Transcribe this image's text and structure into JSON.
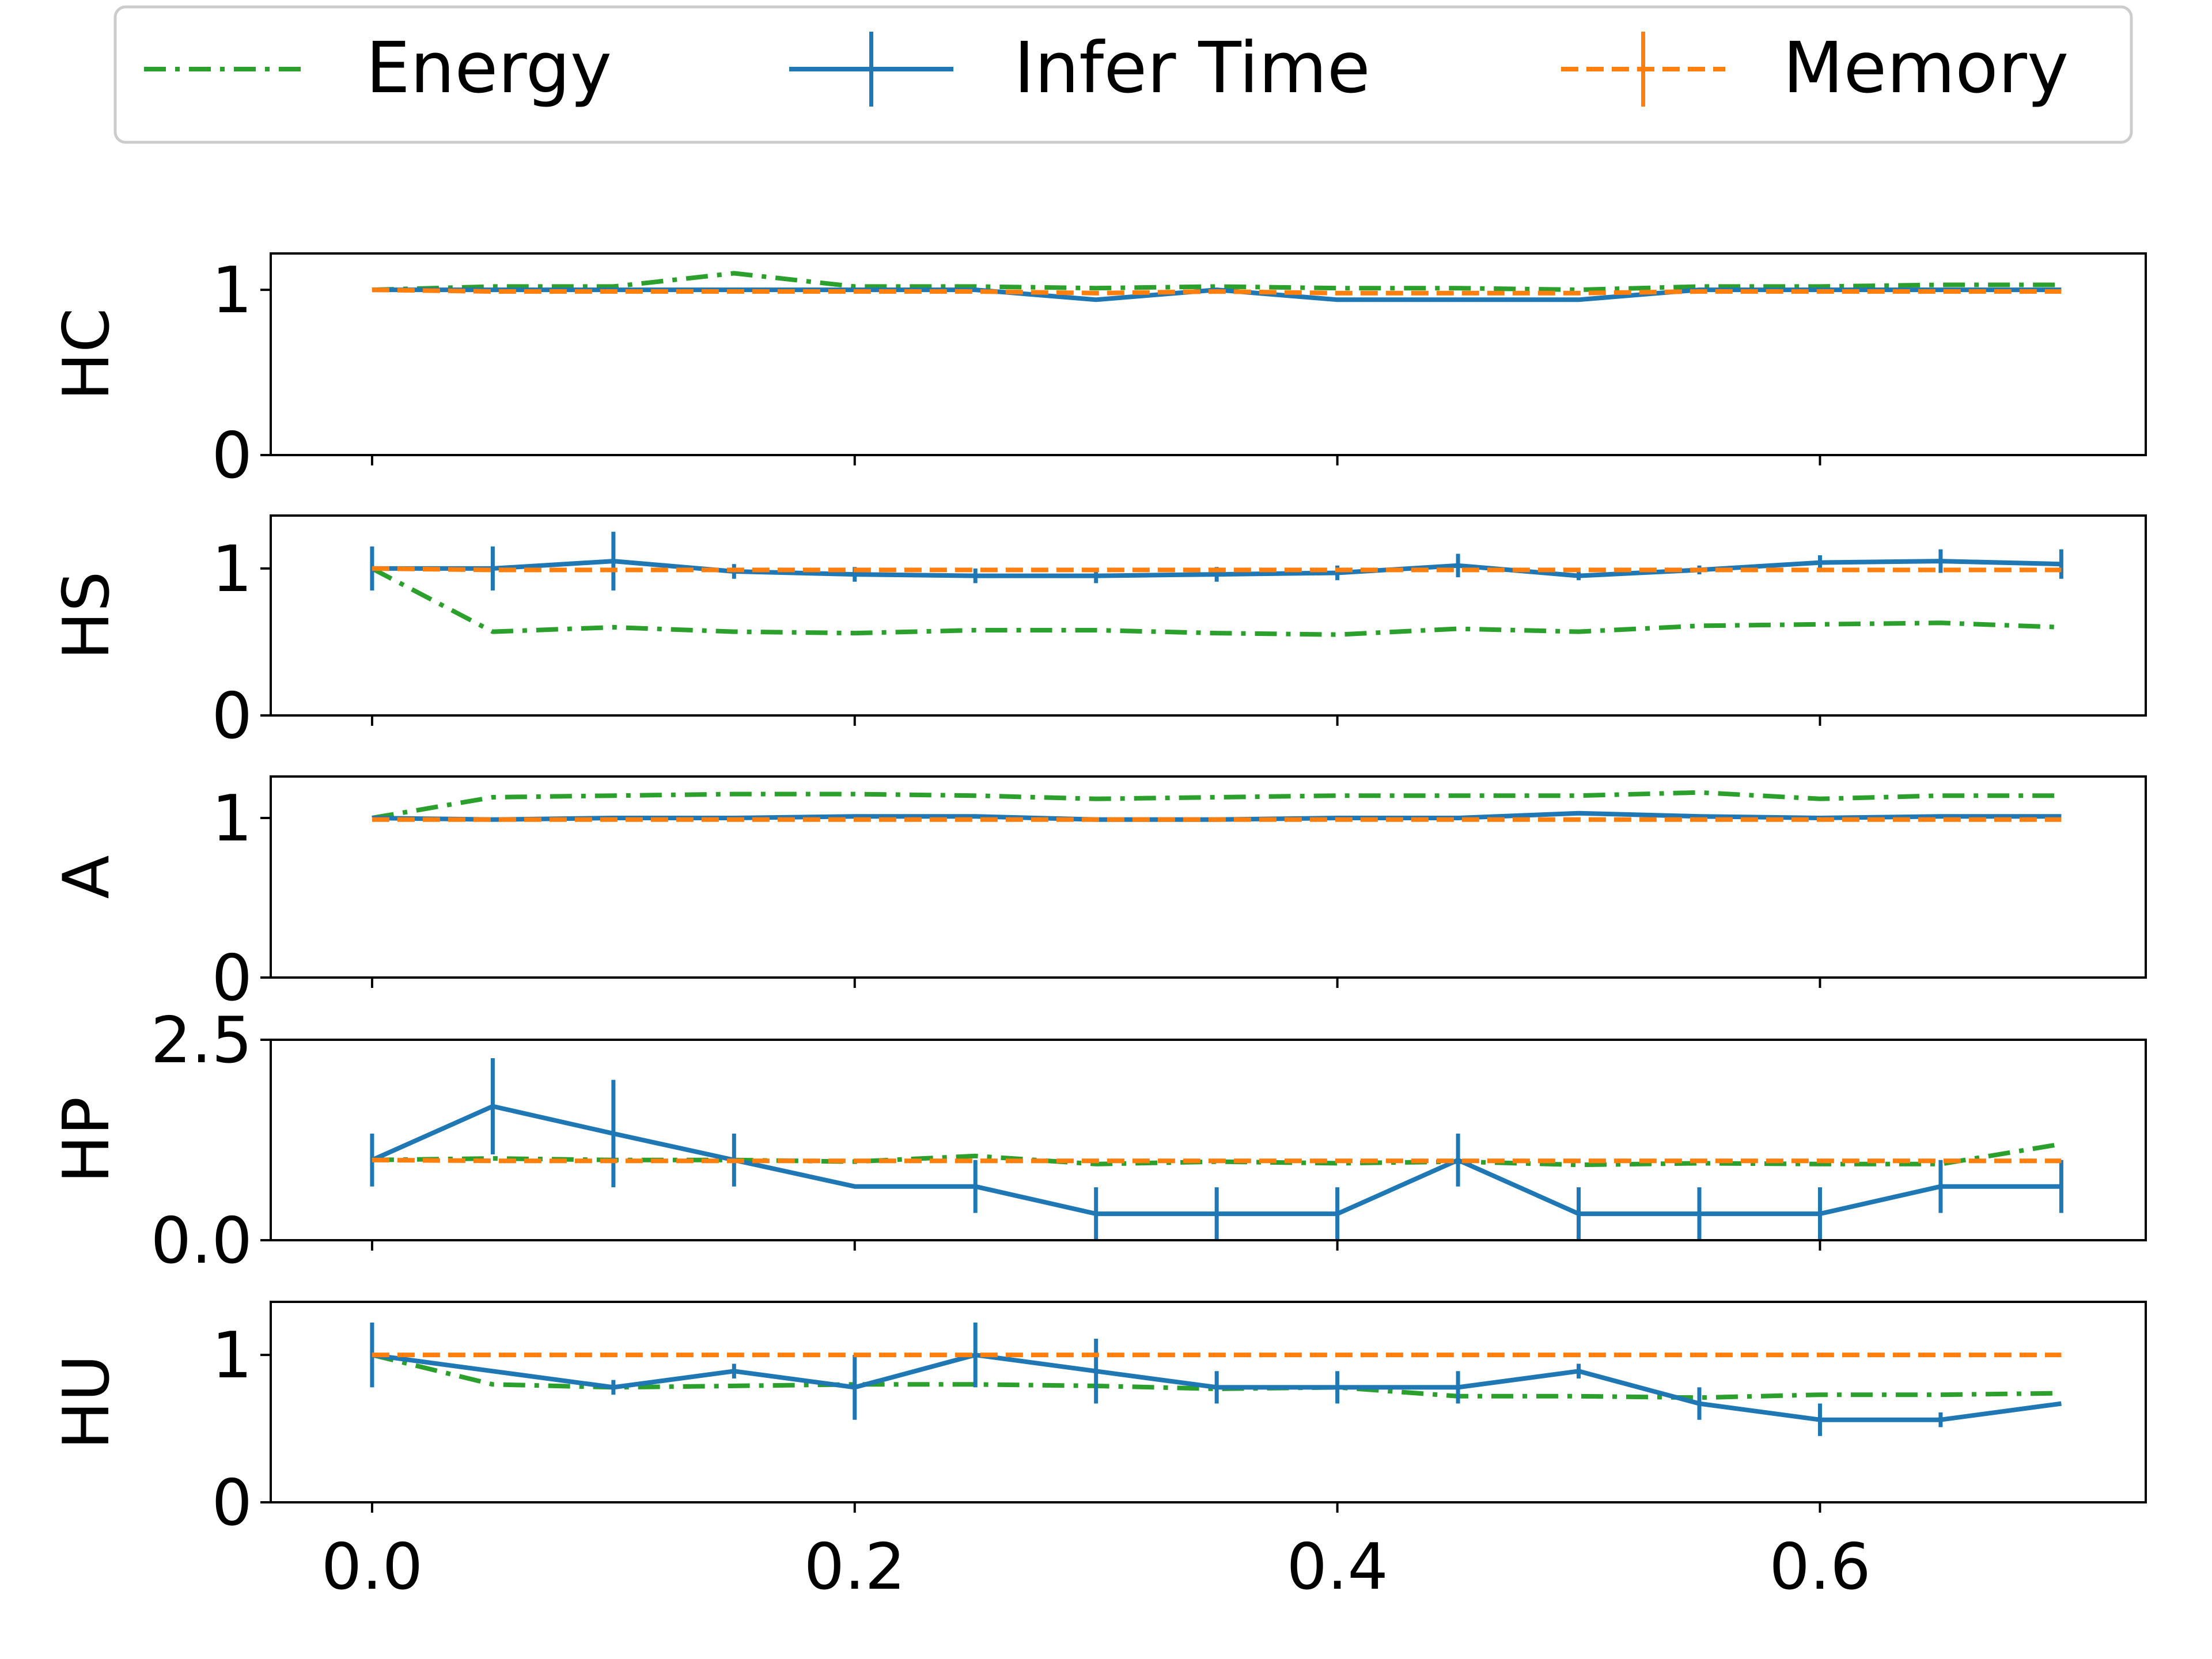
{
  "colors": {
    "energy": "#2ca02c",
    "infer_time": "#1f77b4",
    "memory": "#ff7f0e",
    "frame": "#000000",
    "legend_border": "#cccccc"
  },
  "chart_data": {
    "type": "line",
    "legend": {
      "placement": "top-center",
      "entries": [
        {
          "key": "energy",
          "label": "Energy",
          "style": "dash-dot"
        },
        {
          "key": "infer_time",
          "label": "Infer Time",
          "style": "solid-errorbar"
        },
        {
          "key": "memory",
          "label": "Memory",
          "style": "dashed-errorbar"
        }
      ]
    },
    "x": [
      0.0,
      0.05,
      0.1,
      0.15,
      0.2,
      0.25,
      0.3,
      0.35,
      0.4,
      0.45,
      0.5,
      0.55,
      0.6,
      0.65,
      0.7
    ],
    "xlim": [
      -0.042,
      0.735
    ],
    "xticks": [
      0.0,
      0.2,
      0.4,
      0.6
    ],
    "xtick_labels": [
      "0.0",
      "0.2",
      "0.4",
      "0.6"
    ],
    "panels": [
      {
        "ylabel": "HC",
        "ylim": [
          0,
          1.22
        ],
        "yticks": [
          0,
          1
        ],
        "ytick_labels": [
          "0",
          "1"
        ],
        "series": [
          {
            "name": "Energy",
            "key": "energy",
            "values": [
              1.0,
              1.02,
              1.02,
              1.1,
              1.02,
              1.02,
              1.01,
              1.02,
              1.01,
              1.01,
              1.0,
              1.02,
              1.02,
              1.03,
              1.03
            ]
          },
          {
            "name": "Infer Time",
            "key": "infer_time",
            "values": [
              1.0,
              1.0,
              1.0,
              1.0,
              1.0,
              1.0,
              0.94,
              1.0,
              0.94,
              0.94,
              0.94,
              1.0,
              1.0,
              1.0,
              1.0
            ],
            "err": [
              0,
              0,
              0,
              0,
              0,
              0,
              0,
              0,
              0,
              0,
              0,
              0,
              0,
              0,
              0
            ]
          },
          {
            "name": "Memory",
            "key": "memory",
            "values": [
              1.0,
              0.99,
              0.99,
              0.99,
              0.99,
              0.99,
              0.98,
              0.99,
              0.98,
              0.98,
              0.98,
              0.99,
              0.99,
              0.99,
              0.99
            ],
            "err": [
              0,
              0,
              0,
              0,
              0,
              0,
              0,
              0,
              0,
              0,
              0,
              0,
              0,
              0,
              0
            ]
          }
        ]
      },
      {
        "ylabel": "HS",
        "ylim": [
          0,
          1.36
        ],
        "yticks": [
          0,
          1
        ],
        "ytick_labels": [
          "0",
          "1"
        ],
        "series": [
          {
            "name": "Energy",
            "key": "energy",
            "values": [
              1.0,
              0.57,
              0.6,
              0.57,
              0.56,
              0.58,
              0.58,
              0.56,
              0.55,
              0.59,
              0.57,
              0.61,
              0.62,
              0.63,
              0.6
            ]
          },
          {
            "name": "Infer Time",
            "key": "infer_time",
            "values": [
              1.0,
              1.0,
              1.05,
              0.98,
              0.96,
              0.95,
              0.95,
              0.96,
              0.97,
              1.02,
              0.95,
              0.99,
              1.04,
              1.05,
              1.03
            ],
            "err": [
              0.15,
              0.15,
              0.2,
              0.05,
              0.05,
              0.05,
              0.05,
              0.05,
              0.05,
              0.08,
              0.03,
              0.03,
              0.05,
              0.08,
              0.1
            ]
          },
          {
            "name": "Memory",
            "key": "memory",
            "values": [
              1.0,
              0.99,
              0.99,
              0.99,
              0.99,
              0.99,
              0.99,
              0.99,
              0.99,
              0.99,
              0.99,
              0.99,
              0.99,
              0.99,
              0.99
            ],
            "err": [
              0,
              0,
              0,
              0,
              0,
              0,
              0,
              0,
              0,
              0,
              0,
              0,
              0,
              0,
              0
            ]
          }
        ]
      },
      {
        "ylabel": "A",
        "ylim": [
          0,
          1.26
        ],
        "yticks": [
          0,
          1
        ],
        "ytick_labels": [
          "0",
          "1"
        ],
        "series": [
          {
            "name": "Energy",
            "key": "energy",
            "values": [
              1.0,
              1.13,
              1.14,
              1.15,
              1.15,
              1.14,
              1.12,
              1.13,
              1.14,
              1.14,
              1.14,
              1.16,
              1.12,
              1.14,
              1.14
            ]
          },
          {
            "name": "Infer Time",
            "key": "infer_time",
            "values": [
              1.0,
              0.99,
              1.0,
              1.0,
              1.01,
              1.01,
              0.99,
              0.99,
              1.0,
              1.0,
              1.03,
              1.01,
              1.0,
              1.01,
              1.01
            ],
            "err": [
              0,
              0,
              0,
              0,
              0,
              0,
              0,
              0,
              0,
              0,
              0,
              0,
              0,
              0,
              0
            ]
          },
          {
            "name": "Memory",
            "key": "memory",
            "values": [
              0.99,
              0.99,
              0.99,
              0.99,
              0.99,
              0.99,
              0.99,
              0.99,
              0.99,
              0.99,
              0.99,
              0.99,
              0.99,
              0.99,
              0.99
            ],
            "err": [
              0,
              0,
              0,
              0,
              0,
              0,
              0,
              0,
              0,
              0,
              0,
              0,
              0,
              0,
              0
            ]
          }
        ]
      },
      {
        "ylabel": "HP",
        "ylim": [
          0,
          2.5
        ],
        "yticks": [
          0,
          2.5
        ],
        "ytick_labels": [
          "0.0",
          "2.5"
        ],
        "series": [
          {
            "name": "Energy",
            "key": "energy",
            "values": [
              1.0,
              1.02,
              1.0,
              1.0,
              0.98,
              1.05,
              0.95,
              0.98,
              0.96,
              0.98,
              0.94,
              0.96,
              0.95,
              0.95,
              1.2
            ]
          },
          {
            "name": "Infer Time",
            "key": "infer_time",
            "values": [
              1.0,
              1.67,
              1.33,
              1.0,
              0.67,
              0.67,
              0.33,
              0.33,
              0.33,
              1.0,
              0.33,
              0.33,
              0.33,
              0.67,
              0.67
            ],
            "err": [
              0.33,
              0.6,
              0.67,
              0.33,
              0.0,
              0.33,
              0.33,
              0.33,
              0.33,
              0.33,
              0.33,
              0.33,
              0.33,
              0.33,
              0.33
            ]
          },
          {
            "name": "Memory",
            "key": "memory",
            "values": [
              1.0,
              0.99,
              0.99,
              0.99,
              0.99,
              0.99,
              0.99,
              0.99,
              0.99,
              0.99,
              0.99,
              0.99,
              0.99,
              0.99,
              0.99
            ],
            "err": [
              0,
              0,
              0,
              0,
              0,
              0,
              0,
              0,
              0,
              0,
              0,
              0,
              0,
              0,
              0
            ]
          }
        ]
      },
      {
        "ylabel": "HU",
        "ylim": [
          0,
          1.36
        ],
        "yticks": [
          0,
          1
        ],
        "ytick_labels": [
          "0",
          "1"
        ],
        "series": [
          {
            "name": "Energy",
            "key": "energy",
            "values": [
              1.0,
              0.8,
              0.78,
              0.79,
              0.8,
              0.8,
              0.79,
              0.77,
              0.78,
              0.72,
              0.72,
              0.71,
              0.73,
              0.73,
              0.74
            ]
          },
          {
            "name": "Infer Time",
            "key": "infer_time",
            "values": [
              1.0,
              0.89,
              0.78,
              0.89,
              0.78,
              1.0,
              0.89,
              0.78,
              0.78,
              0.78,
              0.89,
              0.67,
              0.56,
              0.56,
              0.67
            ],
            "err": [
              0.22,
              0.0,
              0.05,
              0.05,
              0.22,
              0.22,
              0.22,
              0.11,
              0.11,
              0.11,
              0.05,
              0.11,
              0.11,
              0.05,
              0.0
            ]
          },
          {
            "name": "Memory",
            "key": "memory",
            "values": [
              1.0,
              1.0,
              1.0,
              1.0,
              1.0,
              1.0,
              1.0,
              1.0,
              1.0,
              1.0,
              1.0,
              1.0,
              1.0,
              1.0,
              1.0
            ],
            "err": [
              0,
              0,
              0,
              0,
              0,
              0,
              0,
              0,
              0,
              0,
              0,
              0,
              0,
              0,
              0
            ]
          }
        ]
      }
    ]
  }
}
